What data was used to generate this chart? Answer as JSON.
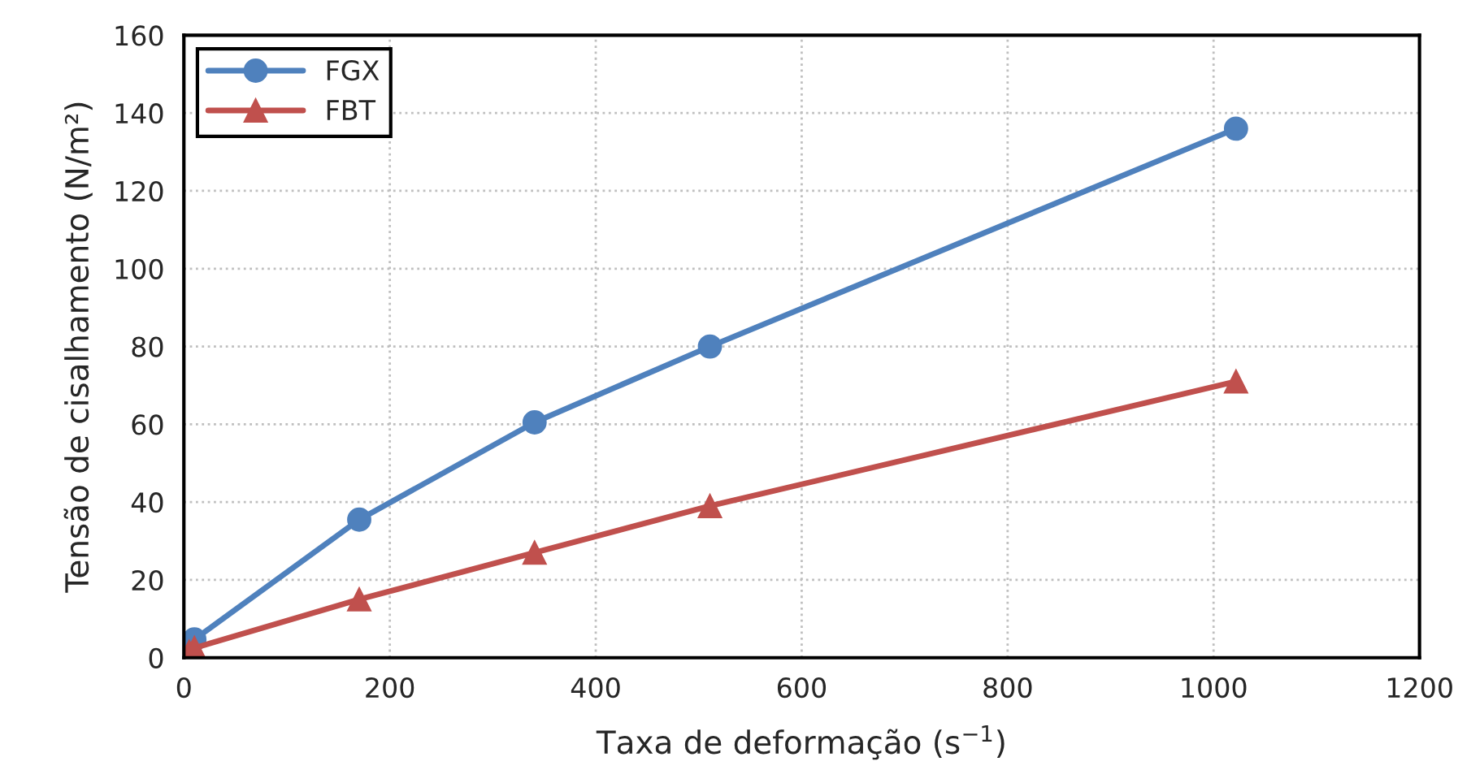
{
  "chart_data": {
    "type": "line",
    "xlabel": "Taxa de deformação (s$^{−1}$)",
    "ylabel": "Tensão de cisalhamento (N/m²)",
    "x": [
      5.1,
      10.2,
      170.3,
      340.6,
      510.9,
      1021.8
    ],
    "series": [
      {
        "name": "FGX",
        "color": "#4f81bd",
        "marker": "circle",
        "values": [
          3,
          4.7,
          35.5,
          60.5,
          80,
          136
        ]
      },
      {
        "name": "FBT",
        "color": "#c0504d",
        "marker": "triangle",
        "values": [
          1.5,
          2.5,
          15,
          27,
          39,
          71
        ]
      }
    ],
    "xlim": [
      0,
      1200
    ],
    "xticks": [
      0,
      200,
      400,
      600,
      800,
      1000,
      1200
    ],
    "ylim": [
      0,
      160
    ],
    "yticks": [
      0,
      20,
      40,
      60,
      80,
      100,
      120,
      140,
      160
    ],
    "grid": true,
    "legend": "top left",
    "line_style": "solid"
  }
}
